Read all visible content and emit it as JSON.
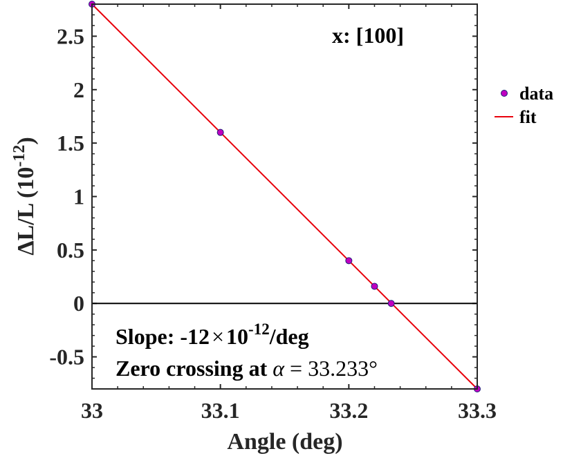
{
  "chart_data": {
    "type": "scatter",
    "title": "x: [100]",
    "xlabel": "Angle (deg)",
    "ylabel_main": "ΔL/L (10",
    "ylabel_exp": "-12",
    "ylabel_close": ")",
    "xlim": [
      33.0,
      33.3
    ],
    "ylim": [
      -0.8,
      2.8
    ],
    "x_ticks": [
      33.0,
      33.1,
      33.2,
      33.3
    ],
    "x_tick_labels": [
      "33",
      "33.1",
      "33.2",
      "33.3"
    ],
    "y_ticks": [
      -0.5,
      0,
      0.5,
      1,
      1.5,
      2,
      2.5
    ],
    "y_tick_labels": [
      "-0.5",
      "0",
      "0.5",
      "1",
      "1.5",
      "2",
      "2.5"
    ],
    "reference_line_y": 0,
    "series": [
      {
        "name": "data",
        "kind": "markers",
        "color": "#c000c0",
        "edge_color": "#1f1f7a",
        "x": [
          33.0,
          33.1,
          33.2,
          33.22,
          33.233,
          33.3
        ],
        "y": [
          2.8,
          1.6,
          0.4,
          0.16,
          0.0,
          -0.8
        ]
      },
      {
        "name": "fit",
        "kind": "line",
        "color": "#e8000b",
        "x": [
          33.0,
          33.3
        ],
        "y": [
          2.8,
          -0.8
        ]
      }
    ],
    "legend": {
      "position": "outside-right",
      "entries": [
        "data",
        "fit"
      ]
    },
    "annotations": {
      "slope_prefix": "Slope: -12",
      "slope_times": "×",
      "slope_ten": "10",
      "slope_exp": "-12",
      "slope_suffix": "/deg",
      "zero_prefix": "Zero crossing at ",
      "zero_symbol": "α",
      "zero_suffix": " = 33.233°"
    }
  }
}
